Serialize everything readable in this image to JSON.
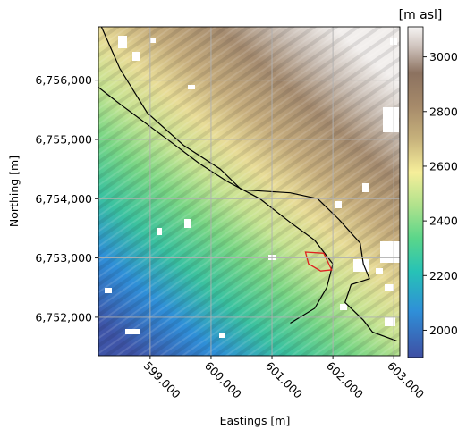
{
  "chart_data": {
    "type": "heatmap",
    "title": "",
    "xlabel": "Eastings [m]",
    "ylabel": "Northing [m]",
    "xlim": [
      598150,
      603100
    ],
    "ylim": [
      6751350,
      6756900
    ],
    "x_ticks": [
      {
        "value": 599000,
        "label": "599,000"
      },
      {
        "value": 600000,
        "label": "600,000"
      },
      {
        "value": 601000,
        "label": "601,000"
      },
      {
        "value": 602000,
        "label": "602,000"
      },
      {
        "value": 603000,
        "label": "603,000"
      }
    ],
    "y_ticks": [
      {
        "value": 6752000,
        "label": "6,752,000"
      },
      {
        "value": 6753000,
        "label": "6,753,000"
      },
      {
        "value": 6754000,
        "label": "6,754,000"
      },
      {
        "value": 6755000,
        "label": "6,755,000"
      },
      {
        "value": 6756000,
        "label": "6,756,000"
      }
    ],
    "grid": true,
    "colorbar": {
      "title": "[m asl]",
      "range": [
        1900,
        3110
      ],
      "ticks": [
        {
          "value": 2000,
          "label": "2000"
        },
        {
          "value": 2200,
          "label": "2200"
        },
        {
          "value": 2400,
          "label": "2400"
        },
        {
          "value": 2600,
          "label": "2600"
        },
        {
          "value": 2800,
          "label": "2800"
        },
        {
          "value": 3000,
          "label": "3000"
        }
      ],
      "colormap": "terrain"
    },
    "elevation_field": {
      "valley_axis": [
        [
          598150,
          6751750
        ],
        [
          603100,
          6755100
        ]
      ],
      "min_value": 1950,
      "max_value": 3050,
      "gradient": "elevation rises toward the north-east"
    },
    "outline_color": "#000000",
    "site_color": "#e02020",
    "glacier_outline": [
      [
        598200,
        6756900
      ],
      [
        598500,
        6756200
      ],
      [
        598950,
        6755450
      ],
      [
        599550,
        6754900
      ],
      [
        600150,
        6754500
      ],
      [
        600500,
        6754150
      ],
      [
        601300,
        6754100
      ],
      [
        601750,
        6754000
      ],
      [
        602100,
        6753650
      ],
      [
        602450,
        6753250
      ],
      [
        602500,
        6752900
      ],
      [
        602600,
        6752650
      ],
      [
        602300,
        6752550
      ],
      [
        602200,
        6752250
      ],
      [
        602500,
        6751950
      ],
      [
        602650,
        6751750
      ],
      [
        603050,
        6751600
      ]
    ],
    "secondary_outline": [
      [
        598000,
        6756000
      ],
      [
        598500,
        6755600
      ],
      [
        599350,
        6754950
      ],
      [
        599800,
        6754600
      ],
      [
        600250,
        6754300
      ],
      [
        600800,
        6754000
      ],
      [
        601300,
        6753600
      ],
      [
        601700,
        6753300
      ],
      [
        602000,
        6752900
      ],
      [
        601900,
        6752500
      ],
      [
        601700,
        6752150
      ],
      [
        601300,
        6751900
      ]
    ],
    "site_polygon": [
      [
        601550,
        6753100
      ],
      [
        601850,
        6753080
      ],
      [
        601980,
        6752800
      ],
      [
        601800,
        6752780
      ],
      [
        601600,
        6752900
      ]
    ]
  }
}
